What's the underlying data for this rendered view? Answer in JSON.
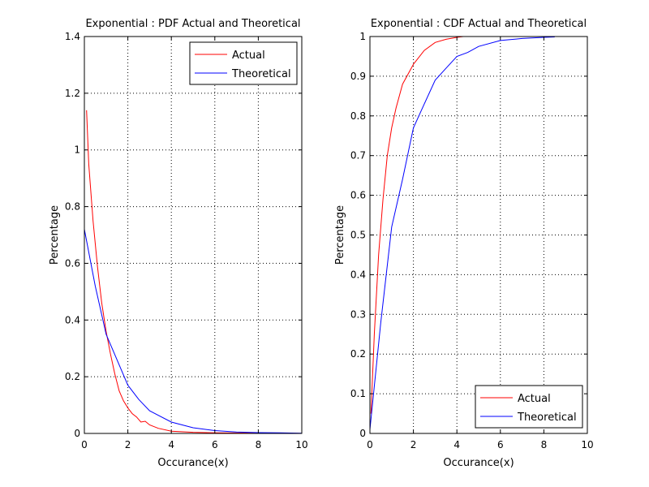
{
  "colors": {
    "actual": "#ff0000",
    "theoretical": "#0000ff",
    "axes": "#000000",
    "grid": "#000000"
  },
  "chart_data": [
    {
      "type": "line",
      "title": "Exponential : PDF Actual and Theoretical",
      "xlabel": "Occurance(x)",
      "ylabel": "Percentage",
      "xlim": [
        0,
        10
      ],
      "ylim": [
        0,
        1.4
      ],
      "xticks": [
        0,
        2,
        4,
        6,
        8,
        10
      ],
      "yticks": [
        0,
        0.2,
        0.4,
        0.6,
        0.8,
        1,
        1.2,
        1.4
      ],
      "xtick_labels": [
        "0",
        "2",
        "4",
        "6",
        "8",
        "10"
      ],
      "ytick_labels": [
        "0",
        "0.2",
        "0.4",
        "0.6",
        "0.8",
        "1",
        "1.2",
        "1.4"
      ],
      "grid": true,
      "legend": "top-right",
      "series": [
        {
          "name": "Actual",
          "color": "#ff0000",
          "x": [
            0.1,
            0.2,
            0.4,
            0.6,
            0.8,
            1.0,
            1.2,
            1.4,
            1.6,
            1.8,
            2.0,
            2.2,
            2.4,
            2.6,
            2.8,
            3.0,
            3.4,
            4.0,
            5.0,
            6.0,
            10.0
          ],
          "y": [
            1.14,
            0.95,
            0.75,
            0.59,
            0.46,
            0.36,
            0.28,
            0.21,
            0.15,
            0.115,
            0.09,
            0.07,
            0.058,
            0.04,
            0.043,
            0.03,
            0.018,
            0.008,
            0.004,
            0.002,
            0.0
          ]
        },
        {
          "name": "Theoretical",
          "color": "#0000ff",
          "x": [
            0.0,
            0.5,
            1.0,
            1.5,
            2.0,
            2.5,
            3.0,
            4.0,
            5.0,
            6.0,
            7.0,
            8.0,
            9.0,
            10.0
          ],
          "y": [
            0.72,
            0.52,
            0.35,
            0.26,
            0.17,
            0.12,
            0.08,
            0.04,
            0.02,
            0.01,
            0.005,
            0.003,
            0.002,
            0.001
          ]
        }
      ]
    },
    {
      "type": "line",
      "title": "Exponential : CDF Actual and Theoretical",
      "xlabel": "Occurance(x)",
      "ylabel": "Percentage",
      "xlim": [
        0,
        10
      ],
      "ylim": [
        0,
        1
      ],
      "xticks": [
        0,
        2,
        4,
        6,
        8,
        10
      ],
      "yticks": [
        0,
        0.1,
        0.2,
        0.3,
        0.4,
        0.5,
        0.6,
        0.7,
        0.8,
        0.9,
        1
      ],
      "xtick_labels": [
        "0",
        "2",
        "4",
        "6",
        "8",
        "10"
      ],
      "ytick_labels": [
        "0",
        "0.1",
        "0.2",
        "0.3",
        "0.4",
        "0.5",
        "0.6",
        "0.7",
        "0.8",
        "0.9",
        "1"
      ],
      "grid": true,
      "legend": "bottom-right",
      "series": [
        {
          "name": "Actual",
          "color": "#ff0000",
          "x": [
            0.05,
            0.2,
            0.4,
            0.6,
            0.8,
            1.0,
            1.2,
            1.5,
            2.0,
            2.5,
            3.0,
            3.5,
            4.0,
            4.3
          ],
          "y": [
            0.05,
            0.25,
            0.45,
            0.59,
            0.7,
            0.77,
            0.82,
            0.88,
            0.93,
            0.965,
            0.985,
            0.993,
            0.998,
            1.0
          ]
        },
        {
          "name": "Theoretical",
          "color": "#0000ff",
          "x": [
            0.0,
            0.5,
            1.0,
            1.5,
            2.0,
            2.5,
            3.0,
            3.5,
            4.0,
            4.5,
            5.0,
            6.0,
            7.0,
            8.0,
            8.5
          ],
          "y": [
            0.01,
            0.28,
            0.52,
            0.64,
            0.77,
            0.83,
            0.89,
            0.92,
            0.95,
            0.96,
            0.975,
            0.99,
            0.995,
            0.998,
            0.999
          ]
        }
      ]
    }
  ]
}
